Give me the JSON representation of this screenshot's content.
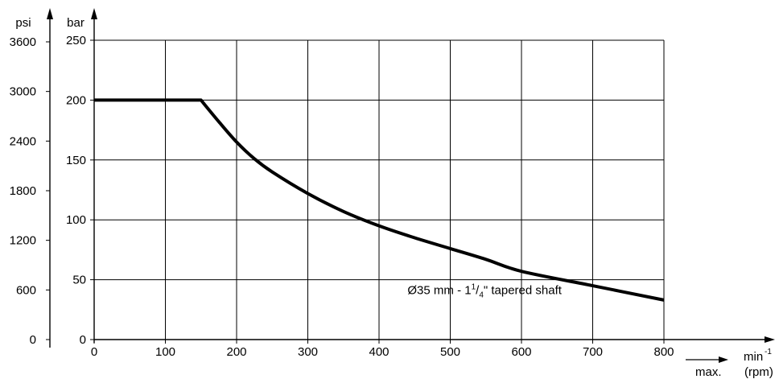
{
  "chart_data": {
    "type": "line",
    "x_axis": {
      "label": "min",
      "label_sup": "-1",
      "sublabel": "(rpm)",
      "note": "max.",
      "range": [
        0,
        800
      ],
      "ticks": [
        0,
        100,
        200,
        300,
        400,
        500,
        600,
        700,
        800
      ]
    },
    "y_axis_bar": {
      "label": "bar",
      "range": [
        0,
        250
      ],
      "ticks": [
        0,
        50,
        100,
        150,
        200,
        250
      ]
    },
    "y_axis_psi": {
      "label": "psi",
      "ticks": [
        0,
        600,
        1200,
        1800,
        2400,
        3000,
        3600
      ]
    },
    "grid": true,
    "annotation": {
      "main": "Ø35 mm - 1",
      "sup": "1",
      "slash": "/",
      "sub": "4",
      "rest": "\"  tapered shaft",
      "x": 440,
      "y": 38
    },
    "series": [
      {
        "x": [
          0,
          150,
          175,
          200,
          225,
          250,
          300,
          350,
          400,
          450,
          500,
          550,
          600,
          700,
          800
        ],
        "y": [
          200,
          200,
          182,
          165,
          151,
          140,
          122,
          107,
          95,
          85,
          76,
          67,
          57,
          45,
          33
        ]
      }
    ]
  }
}
